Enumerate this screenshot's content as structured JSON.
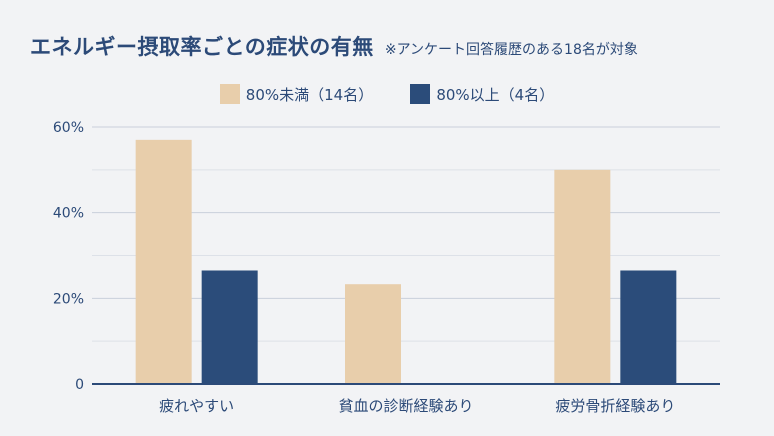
{
  "chart_title": "エネルギー摂取率ごとの症状の有無",
  "chart_subtitle": "※アンケート回答履歴のある18名が対象",
  "chart_data": {
    "type": "bar",
    "title": "エネルギー摂取率ごとの症状の有無",
    "subtitle": "※アンケート回答履歴のある18名が対象",
    "categories": [
      "疲れやすい",
      "貧血の診断経験あり",
      "疲労骨折経験あり"
    ],
    "series": [
      {
        "name": "80%未満（14名）",
        "color": "#e8ceab",
        "values": [
          57,
          23.3,
          50
        ]
      },
      {
        "name": "80%以上（4名）",
        "color": "#2b4c7a",
        "values": [
          26.5,
          0,
          26.5
        ]
      }
    ],
    "ylim": [
      0,
      60
    ],
    "yticks": [
      0,
      20,
      40,
      60
    ],
    "ytick_labels": [
      "0",
      "20%",
      "40%",
      "60%"
    ],
    "xlabel": "",
    "ylabel": "",
    "grid": true,
    "legend_position": "top-center"
  }
}
